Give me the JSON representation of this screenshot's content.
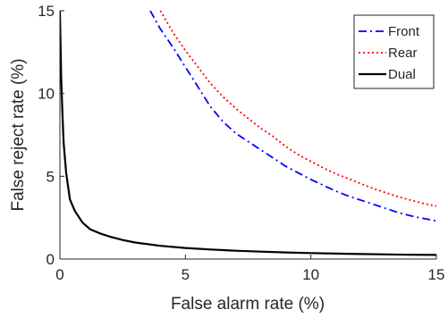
{
  "chart_data": {
    "type": "line",
    "xlabel": "False alarm rate (%)",
    "ylabel": "False reject rate (%)",
    "xlim": [
      0,
      15
    ],
    "ylim": [
      0,
      15
    ],
    "xticks": [
      "0",
      "5",
      "10",
      "15"
    ],
    "yticks": [
      "0",
      "5",
      "10",
      "15"
    ],
    "grid": false,
    "legend_position": "top-right",
    "series": [
      {
        "name": "Front",
        "color": "#0000ff",
        "style": "dashdot",
        "x": [
          3.6,
          4.0,
          4.5,
          5.0,
          5.5,
          6.0,
          6.5,
          7.0,
          7.5,
          8.0,
          8.5,
          9.0,
          9.5,
          10.0,
          10.5,
          11.0,
          11.5,
          12.0,
          12.5,
          13.0,
          13.5,
          14.0,
          14.5,
          15.0
        ],
        "y": [
          15.0,
          13.9,
          12.8,
          11.6,
          10.4,
          9.2,
          8.3,
          7.6,
          7.1,
          6.6,
          6.1,
          5.6,
          5.2,
          4.8,
          4.45,
          4.1,
          3.8,
          3.55,
          3.3,
          3.05,
          2.8,
          2.6,
          2.45,
          2.3
        ]
      },
      {
        "name": "Rear",
        "color": "#ff0000",
        "style": "dotted",
        "x": [
          4.0,
          4.5,
          5.0,
          5.5,
          6.0,
          6.5,
          7.0,
          7.5,
          8.0,
          8.5,
          9.0,
          9.5,
          10.0,
          10.5,
          11.0,
          11.5,
          12.0,
          12.5,
          13.0,
          13.5,
          14.0,
          14.5,
          15.0
        ],
        "y": [
          15.0,
          13.7,
          12.6,
          11.6,
          10.6,
          9.8,
          9.1,
          8.5,
          7.9,
          7.4,
          6.8,
          6.3,
          5.9,
          5.5,
          5.15,
          4.85,
          4.55,
          4.25,
          4.0,
          3.75,
          3.55,
          3.35,
          3.2
        ]
      },
      {
        "name": "Dual",
        "color": "#000000",
        "style": "solid",
        "x": [
          0.0,
          0.05,
          0.1,
          0.15,
          0.25,
          0.4,
          0.6,
          0.9,
          1.2,
          1.6,
          2.0,
          2.5,
          3.0,
          4.0,
          5.0,
          6.0,
          7.0,
          8.0,
          9.0,
          10.0,
          11.0,
          12.0,
          13.0,
          14.0,
          15.0
        ],
        "y": [
          15.0,
          11.0,
          8.8,
          7.0,
          5.2,
          3.6,
          2.9,
          2.2,
          1.8,
          1.55,
          1.35,
          1.15,
          1.0,
          0.8,
          0.67,
          0.58,
          0.5,
          0.45,
          0.4,
          0.36,
          0.33,
          0.3,
          0.28,
          0.26,
          0.25
        ]
      }
    ]
  }
}
